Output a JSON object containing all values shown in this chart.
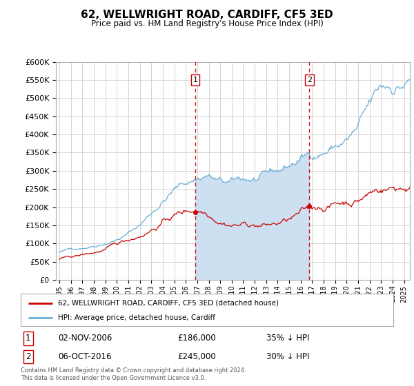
{
  "title": "62, WELLWRIGHT ROAD, CARDIFF, CF5 3ED",
  "subtitle": "Price paid vs. HM Land Registry's House Price Index (HPI)",
  "hpi_color": "#6baed6",
  "hpi_fill_color": "#c8ddf0",
  "price_color": "#cc0000",
  "vline_color": "#cc0000",
  "sale1": {
    "date": "02-NOV-2006",
    "price": 186000,
    "label": "35% ↓ HPI",
    "x": 2006.83
  },
  "sale2": {
    "date": "06-OCT-2016",
    "price": 245000,
    "label": "30% ↓ HPI",
    "x": 2016.75
  },
  "legend_label1": "62, WELLWRIGHT ROAD, CARDIFF, CF5 3ED (detached house)",
  "legend_label2": "HPI: Average price, detached house, Cardiff",
  "footer": "Contains HM Land Registry data © Crown copyright and database right 2024.\nThis data is licensed under the Open Government Licence v3.0.",
  "bg_color": "#ffffff",
  "plot_bg_color": "#ffffff",
  "ylim": [
    0,
    600000
  ],
  "yticks": [
    0,
    50000,
    100000,
    150000,
    200000,
    250000,
    300000,
    350000,
    400000,
    450000,
    500000,
    550000,
    600000
  ],
  "xlim_min": 1994.7,
  "xlim_max": 2025.5
}
